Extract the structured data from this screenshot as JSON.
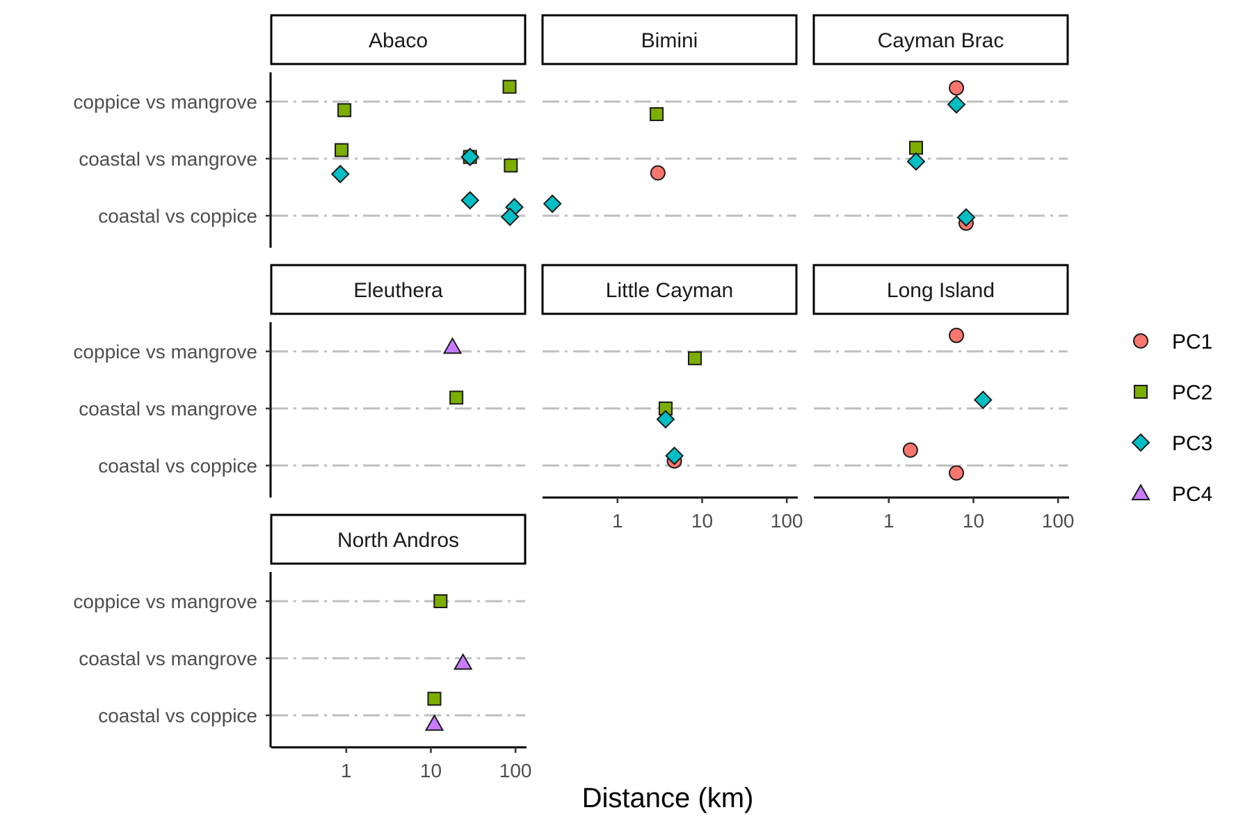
{
  "chart_data": {
    "type": "scatter",
    "xlabel": "Distance (km)",
    "x_scale": "log10",
    "xlim": [
      0.13,
      130
    ],
    "x_ticks": [
      {
        "value": 1,
        "label": "1"
      },
      {
        "value": 10,
        "label": "10"
      },
      {
        "value": 100,
        "label": "100"
      }
    ],
    "categories": [
      "coastal vs coppice",
      "coastal vs mangrove",
      "coppice vs mangrove"
    ],
    "grid": "horizontal dot-dash",
    "legend_position": "right",
    "legend": [
      {
        "name": "PC1",
        "shape": "circle",
        "color": "#F8766D"
      },
      {
        "name": "PC2",
        "shape": "square",
        "color": "#7CAE00"
      },
      {
        "name": "PC3",
        "shape": "diamond",
        "color": "#00BFC4"
      },
      {
        "name": "PC4",
        "shape": "triangle",
        "color": "#C77CFF"
      }
    ],
    "panels": [
      {
        "name": "Abaco",
        "points": [
          {
            "series": "PC2",
            "category": "coppice vs mangrove",
            "x": 85,
            "jitter": 0.26
          },
          {
            "series": "PC2",
            "category": "coppice vs mangrove",
            "x": 0.95,
            "jitter": -0.15
          },
          {
            "series": "PC2",
            "category": "coastal vs mangrove",
            "x": 0.88,
            "jitter": 0.15
          },
          {
            "series": "PC1",
            "category": "coastal vs mangrove",
            "x": 29,
            "jitter": 0.03
          },
          {
            "series": "PC2",
            "category": "coastal vs mangrove",
            "x": 29,
            "jitter": 0.03
          },
          {
            "series": "PC3",
            "category": "coastal vs mangrove",
            "x": 29,
            "jitter": 0.03
          },
          {
            "series": "PC2",
            "category": "coastal vs mangrove",
            "x": 88,
            "jitter": -0.12
          },
          {
            "series": "PC3",
            "category": "coastal vs mangrove",
            "x": 0.85,
            "jitter": -0.27
          },
          {
            "series": "PC3",
            "category": "coastal vs coppice",
            "x": 29,
            "jitter": 0.27
          },
          {
            "series": "PC3",
            "category": "coastal vs coppice",
            "x": 97,
            "jitter": 0.15
          },
          {
            "series": "PC3",
            "category": "coastal vs coppice",
            "x": 86,
            "jitter": -0.02
          }
        ]
      },
      {
        "name": "Bimini",
        "points": [
          {
            "series": "PC2",
            "category": "coppice vs mangrove",
            "x": 2.9,
            "jitter": -0.22
          },
          {
            "series": "PC1",
            "category": "coastal vs mangrove",
            "x": 3.0,
            "jitter": -0.25
          },
          {
            "series": "PC3",
            "category": "coastal vs coppice",
            "x": 0.17,
            "jitter": 0.21
          }
        ]
      },
      {
        "name": "Cayman Brac",
        "points": [
          {
            "series": "PC1",
            "category": "coppice vs mangrove",
            "x": 6.3,
            "jitter": 0.24
          },
          {
            "series": "PC3",
            "category": "coppice vs mangrove",
            "x": 6.3,
            "jitter": -0.05
          },
          {
            "series": "PC2",
            "category": "coastal vs mangrove",
            "x": 2.1,
            "jitter": 0.19
          },
          {
            "series": "PC3",
            "category": "coastal vs mangrove",
            "x": 2.1,
            "jitter": -0.05
          },
          {
            "series": "PC1",
            "category": "coastal vs coppice",
            "x": 8.2,
            "jitter": -0.13
          },
          {
            "series": "PC3",
            "category": "coastal vs coppice",
            "x": 8.2,
            "jitter": -0.03
          }
        ]
      },
      {
        "name": "Eleuthera",
        "points": [
          {
            "series": "PC4",
            "category": "coppice vs mangrove",
            "x": 18,
            "jitter": 0.08
          },
          {
            "series": "PC2",
            "category": "coastal vs mangrove",
            "x": 20,
            "jitter": 0.19
          }
        ]
      },
      {
        "name": "Little Cayman",
        "points": [
          {
            "series": "PC2",
            "category": "coppice vs mangrove",
            "x": 8.2,
            "jitter": -0.12
          },
          {
            "series": "PC2",
            "category": "coastal vs mangrove",
            "x": 3.7,
            "jitter": 0.0
          },
          {
            "series": "PC3",
            "category": "coastal vs mangrove",
            "x": 3.7,
            "jitter": -0.19
          },
          {
            "series": "PC1",
            "category": "coastal vs coppice",
            "x": 4.7,
            "jitter": 0.08
          },
          {
            "series": "PC3",
            "category": "coastal vs coppice",
            "x": 4.7,
            "jitter": 0.17
          }
        ]
      },
      {
        "name": "Long Island",
        "points": [
          {
            "series": "PC1",
            "category": "coppice vs mangrove",
            "x": 6.3,
            "jitter": 0.28
          },
          {
            "series": "PC3",
            "category": "coastal vs mangrove",
            "x": 13,
            "jitter": 0.15
          },
          {
            "series": "PC1",
            "category": "coastal vs coppice",
            "x": 1.8,
            "jitter": 0.27
          },
          {
            "series": "PC1",
            "category": "coastal vs coppice",
            "x": 6.3,
            "jitter": -0.13
          }
        ]
      },
      {
        "name": "North Andros",
        "points": [
          {
            "series": "PC2",
            "category": "coppice vs mangrove",
            "x": 13,
            "jitter": 0.0
          },
          {
            "series": "PC4",
            "category": "coastal vs mangrove",
            "x": 24,
            "jitter": -0.08
          },
          {
            "series": "PC2",
            "category": "coastal vs coppice",
            "x": 11,
            "jitter": 0.29
          },
          {
            "series": "PC4",
            "category": "coastal vs coppice",
            "x": 11,
            "jitter": -0.15
          }
        ]
      }
    ]
  }
}
